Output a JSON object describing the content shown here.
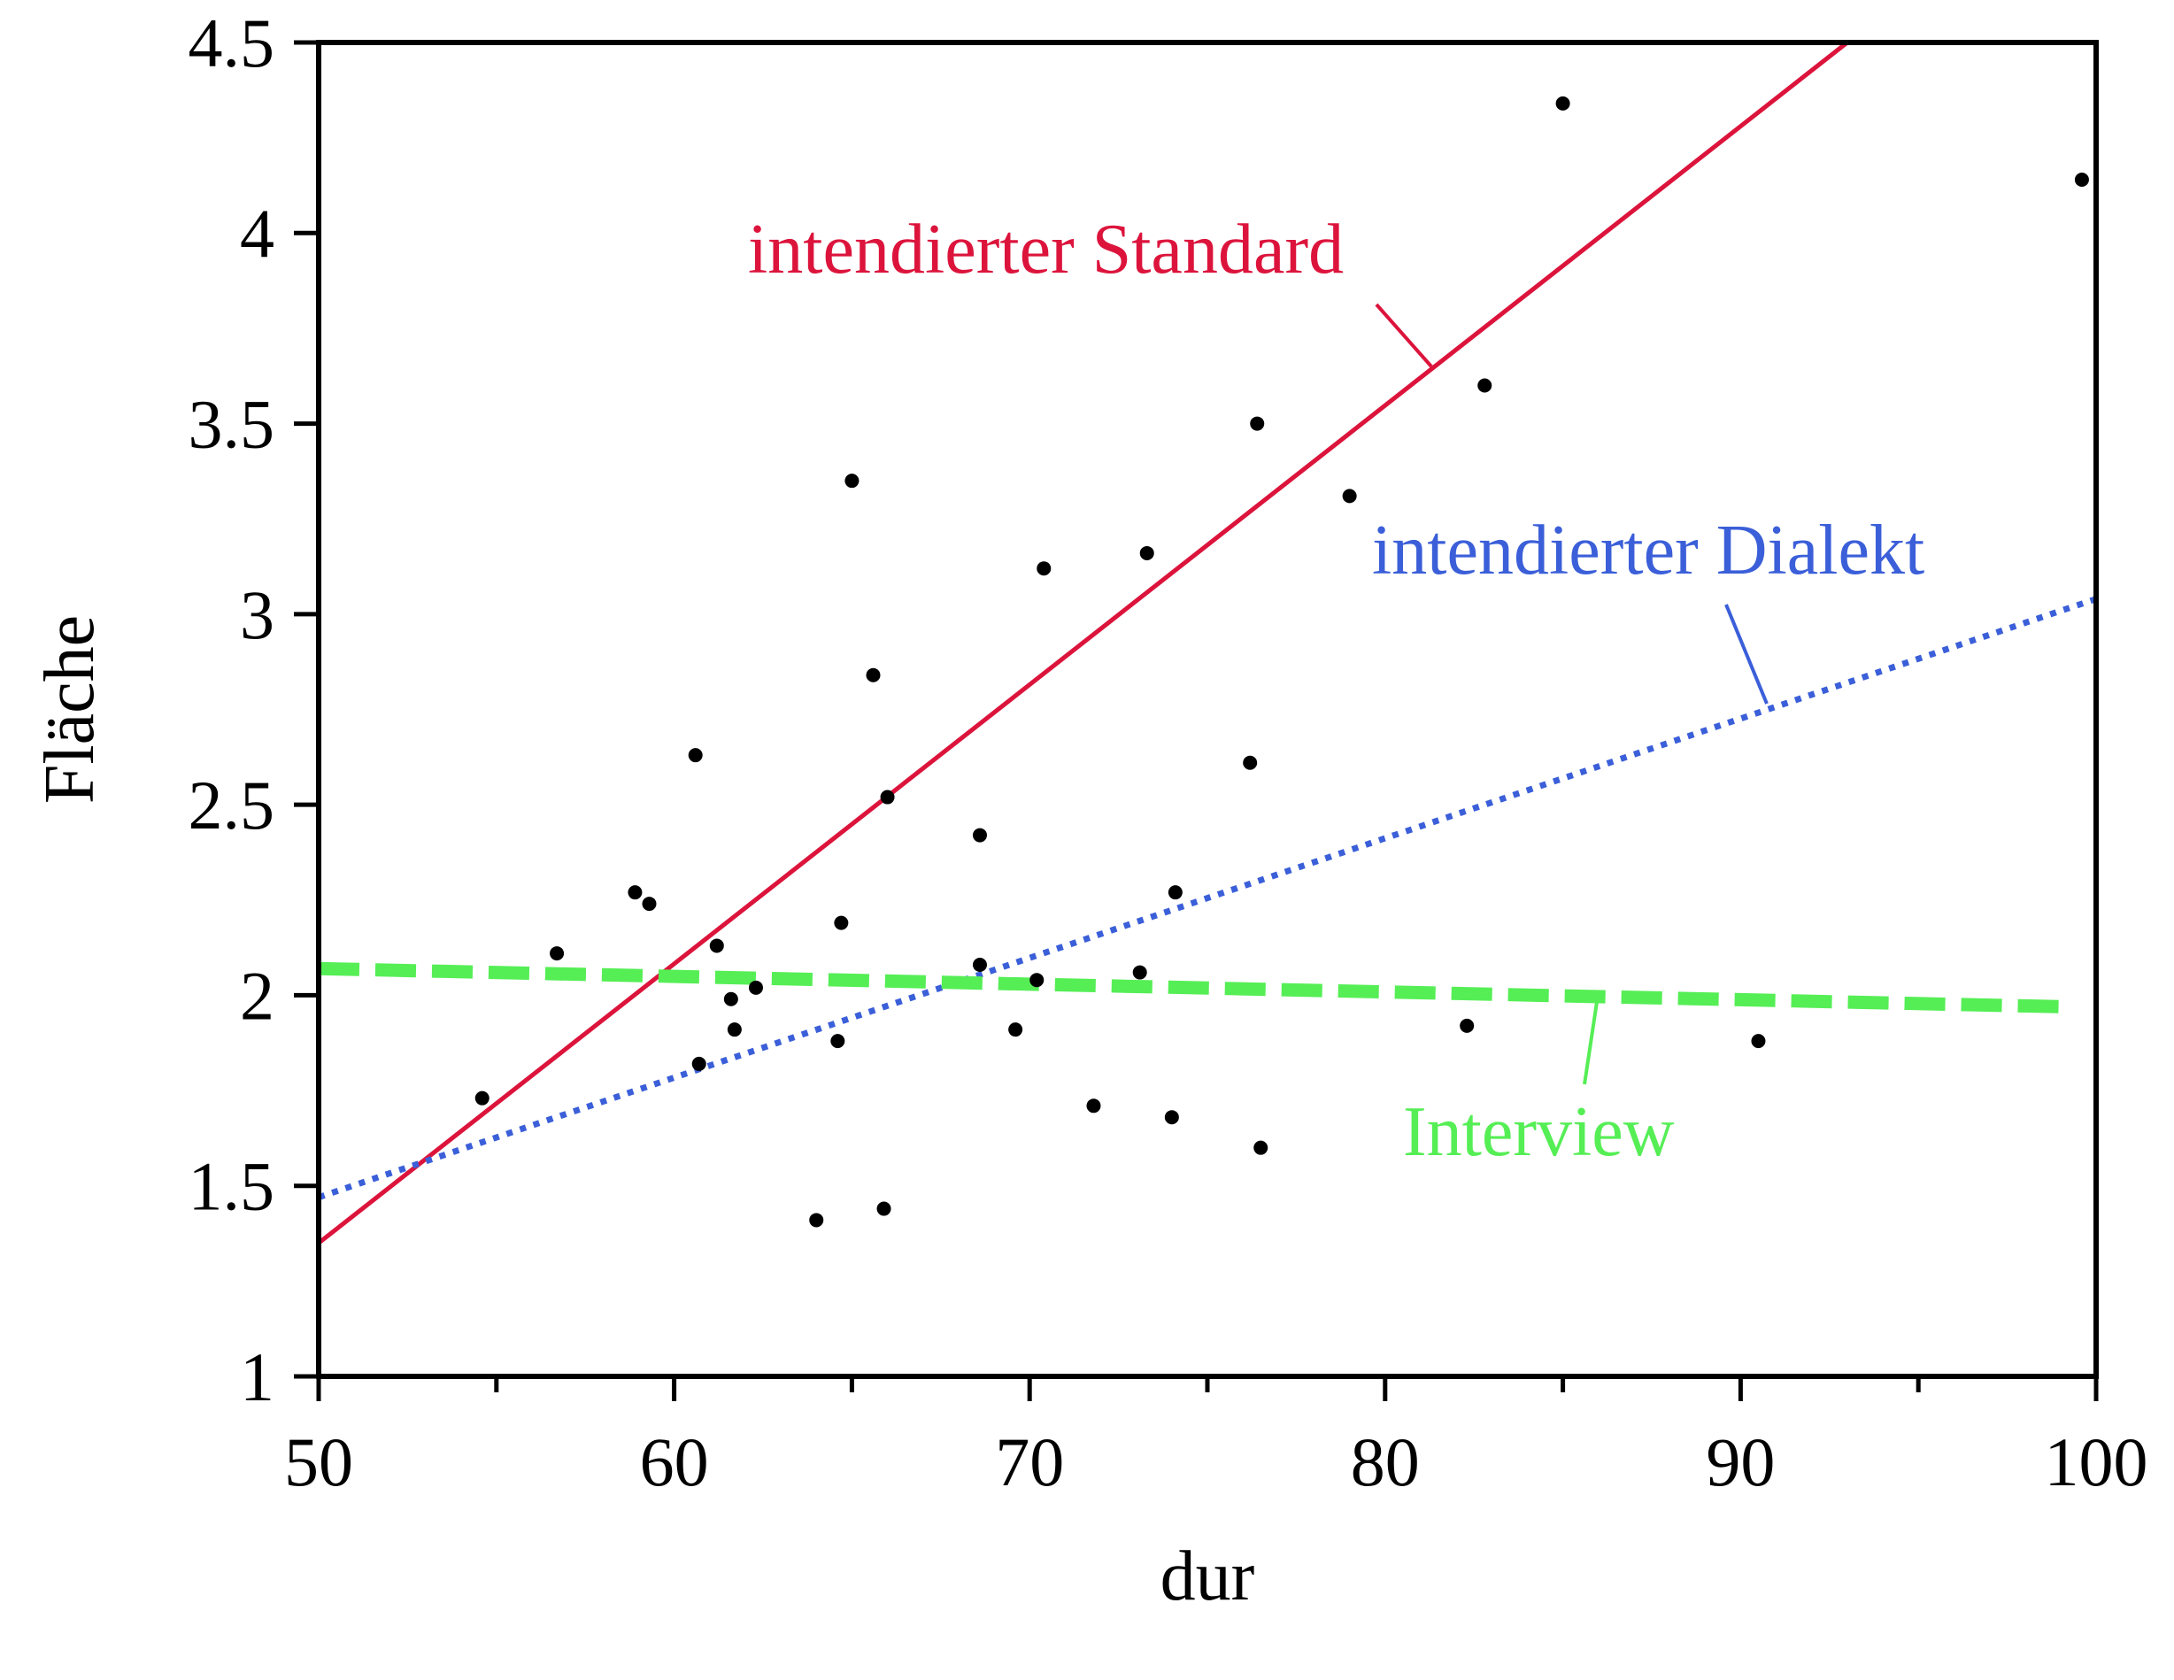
{
  "chart_data": {
    "type": "scatter",
    "xlabel": "dur",
    "ylabel": "Fläche",
    "xlim": [
      50,
      100
    ],
    "ylim": [
      1,
      4.5
    ],
    "xticks": [
      "50",
      "60",
      "70",
      "80",
      "90",
      "100"
    ],
    "xtick_values": [
      50,
      60,
      70,
      80,
      90,
      100
    ],
    "yticks": [
      "1",
      "1.5",
      "2",
      "2.5",
      "3",
      "3.5",
      "4",
      "4.5"
    ],
    "ytick_values": [
      1,
      1.5,
      2,
      2.5,
      3,
      3.5,
      4,
      4.5
    ],
    "grid": false,
    "points": [
      {
        "x": 54.6,
        "y": 1.73
      },
      {
        "x": 56.7,
        "y": 2.11
      },
      {
        "x": 58.9,
        "y": 2.27
      },
      {
        "x": 59.3,
        "y": 2.24
      },
      {
        "x": 60.6,
        "y": 2.63
      },
      {
        "x": 60.7,
        "y": 1.82
      },
      {
        "x": 61.2,
        "y": 2.13
      },
      {
        "x": 61.6,
        "y": 1.99
      },
      {
        "x": 61.7,
        "y": 1.91
      },
      {
        "x": 62.3,
        "y": 2.02
      },
      {
        "x": 64.0,
        "y": 1.41
      },
      {
        "x": 64.6,
        "y": 1.88
      },
      {
        "x": 64.7,
        "y": 2.19
      },
      {
        "x": 65.0,
        "y": 3.35
      },
      {
        "x": 65.6,
        "y": 2.84
      },
      {
        "x": 65.9,
        "y": 1.44
      },
      {
        "x": 66.0,
        "y": 2.52
      },
      {
        "x": 68.6,
        "y": 2.42
      },
      {
        "x": 68.6,
        "y": 2.08
      },
      {
        "x": 69.6,
        "y": 1.91
      },
      {
        "x": 70.2,
        "y": 2.04
      },
      {
        "x": 70.4,
        "y": 3.12
      },
      {
        "x": 71.8,
        "y": 1.71
      },
      {
        "x": 73.1,
        "y": 2.06
      },
      {
        "x": 73.3,
        "y": 3.16
      },
      {
        "x": 74.0,
        "y": 1.68
      },
      {
        "x": 74.1,
        "y": 2.27
      },
      {
        "x": 76.2,
        "y": 2.61
      },
      {
        "x": 76.4,
        "y": 3.5
      },
      {
        "x": 76.5,
        "y": 1.6
      },
      {
        "x": 79.0,
        "y": 3.31
      },
      {
        "x": 82.3,
        "y": 1.92
      },
      {
        "x": 82.8,
        "y": 3.6
      },
      {
        "x": 85.0,
        "y": 4.34
      },
      {
        "x": 90.5,
        "y": 1.88
      },
      {
        "x": 99.6,
        "y": 4.14
      }
    ],
    "lines": [
      {
        "name": "intendierter Standard",
        "color": "#dc143c",
        "style": "solid",
        "x": [
          50,
          93
        ],
        "y": [
          1.35,
          4.5
        ]
      },
      {
        "name": "intendierter Dialekt",
        "color": "#3b5fd9",
        "style": "dotted",
        "x": [
          50,
          100
        ],
        "y": [
          1.47,
          3.04
        ]
      },
      {
        "name": "Interview",
        "color": "#55ee55",
        "style": "dashed",
        "x": [
          50,
          99
        ],
        "y": [
          2.07,
          1.97
        ]
      }
    ]
  }
}
